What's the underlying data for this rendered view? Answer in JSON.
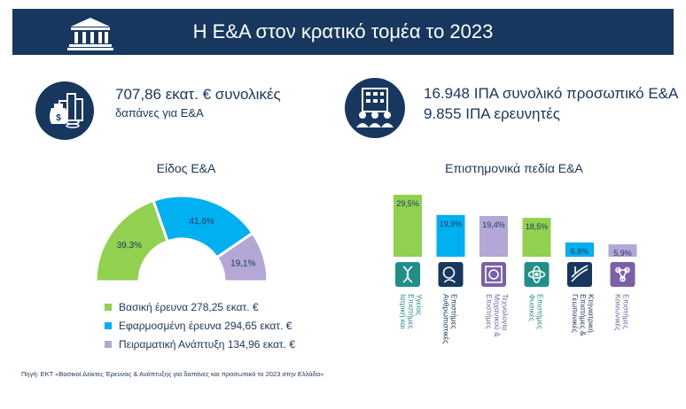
{
  "header": {
    "title": "Η Ε&Α στον κρατικό τομέα το 2023"
  },
  "kpis": {
    "expenditure_line1": "707,86 εκατ. € συνολικές",
    "expenditure_line2": "δαπάνες για Ε&Α",
    "personnel_line1": "16.948 ΙΠΑ συνολικό προσωπικό Ε&Α",
    "personnel_line2": "9.855 ΙΠΑ ερευνητές"
  },
  "icons": {
    "header": "bank-building-icon",
    "expenditure": "money-bag-city-icon",
    "personnel": "building-people-icon"
  },
  "colors": {
    "navy": "#17375e",
    "green": "#92d050",
    "blue": "#00b0f0",
    "lilac": "#b4a7d6",
    "teal": "#1f8f87",
    "purple": "#7a60a6"
  },
  "chart_data": [
    {
      "type": "pie",
      "title": "Είδος Ε&Α",
      "categories": [
        "Βασική έρευνα",
        "Εφαρμοσμένη έρευνα",
        "Πειραματική Ανάπτυξη"
      ],
      "values": [
        39.3,
        41.6,
        19.1
      ],
      "value_labels": [
        "39,3%",
        "41,6%",
        "19,1%"
      ],
      "legend": [
        "Βασική έρευνα  278,25 εκατ. €",
        "Εφαρμοσμένη έρευνα 294,65 εκατ. €",
        "Πειραματική Ανάπτυξη 134,96 εκατ. €"
      ],
      "colors": [
        "#92d050",
        "#00b0f0",
        "#b4a7d6"
      ]
    },
    {
      "type": "bar",
      "title": "Επιστημονικά πεδία Ε&Α",
      "categories": [
        "Ιατρική και Επιστήμες Υγείας",
        "Ανθρωπιστικές Επιστήμες",
        "Επιστήμες Μηχανικού & Τεχνολογία",
        "Φυσικές Επιστήμες",
        "Γεωπονικές Επιστήμες & Κτηνιατρική",
        "Κοινωνικές Επιστήμες"
      ],
      "values": [
        29.5,
        19.9,
        19.4,
        18.5,
        6.8,
        5.9
      ],
      "value_labels": [
        "29,5%",
        "19,9%",
        "19,4%",
        "18,5%",
        "6,8%",
        "5,9%"
      ],
      "colors": [
        "#92d050",
        "#00b0f0",
        "#b4a7d6",
        "#92d050",
        "#00b0f0",
        "#b4a7d6"
      ],
      "icons": [
        "dna-icon",
        "people-head-icon",
        "gear-chip-icon",
        "atom-icon",
        "field-plant-icon",
        "network-people-icon"
      ],
      "icon_colors": [
        "#1f8f87",
        "#17375e",
        "#7a60a6",
        "#1f8f87",
        "#17375e",
        "#7a60a6"
      ]
    }
  ],
  "source": "Πηγή: ΕΚΤ «Βασικοί Δείκτες Έρευνας & Ανάπτυξης για δαπάνες και προσωπικό το 2023 στην Ελλάδα»"
}
